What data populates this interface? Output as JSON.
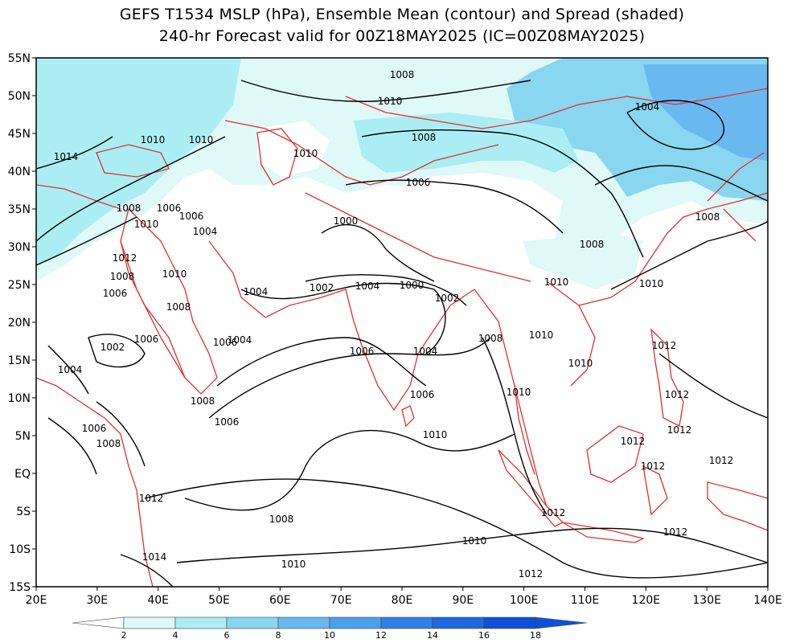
{
  "header": {
    "title_line1": "GEFS T1534 MSLP (hPa), Ensemble Mean (contour) and Spread (shaded)",
    "title_line2": "240-hr Forecast valid for 00Z18MAY2025 (IC=00Z08MAY2025)"
  },
  "map": {
    "lat_labels": [
      "55N",
      "50N",
      "45N",
      "40N",
      "35N",
      "30N",
      "25N",
      "20N",
      "15N",
      "10N",
      "5N",
      "EQ",
      "5S",
      "10S",
      "15S"
    ],
    "lon_labels": [
      "20E",
      "30E",
      "40E",
      "50E",
      "60E",
      "70E",
      "80E",
      "90E",
      "100E",
      "110E",
      "120E",
      "130E",
      "140E"
    ],
    "colors": {
      "contour": "#000000",
      "coastline": "#e03030",
      "spread_2_4": "#dff8f8",
      "spread_4_6": "#aaeef4",
      "spread_6_8": "#88d6f0",
      "spread_8_10": "#6ab8f0",
      "spread_10_12": "#4aa0ec",
      "spread_12_14": "#3080e8",
      "spread_14_16": "#2068e0",
      "spread_16_18": "#1050d8"
    },
    "contour_labels": [
      "1008",
      "1010",
      "1014",
      "1010",
      "1010",
      "1008",
      "1006",
      "1006",
      "1004",
      "1010",
      "1008",
      "1006",
      "1004",
      "1000",
      "1012",
      "1008",
      "1010",
      "1006",
      "1008",
      "1004",
      "1002",
      "1004",
      "1000",
      "1002",
      "1008",
      "1010",
      "1010",
      "1010",
      "1002",
      "1006",
      "1006",
      "1006",
      "1004",
      "1004",
      "1008",
      "1010",
      "1012",
      "1008",
      "1006",
      "1006",
      "1012",
      "1012",
      "1006",
      "1008",
      "1008",
      "1010",
      "1010",
      "1010",
      "1012",
      "1012",
      "1012",
      "1012",
      "1008",
      "1012",
      "1010",
      "1012",
      "1014",
      "1010",
      "1012",
      "1004"
    ]
  },
  "colorbar": {
    "tick_labels": [
      "2",
      "4",
      "6",
      "8",
      "10",
      "12",
      "14",
      "16",
      "18"
    ]
  }
}
